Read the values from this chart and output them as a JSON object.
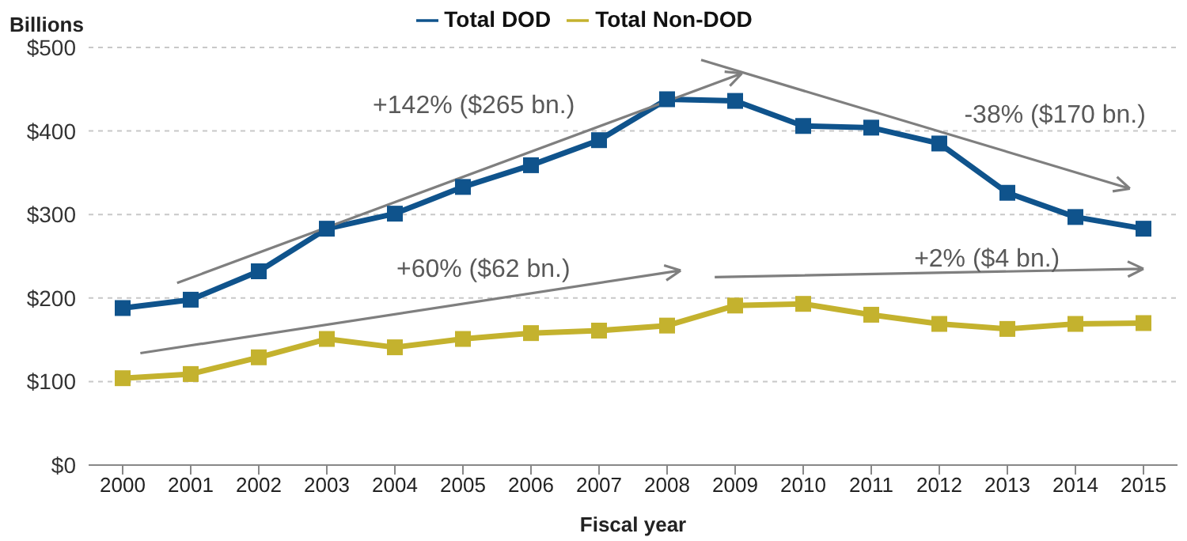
{
  "chart_data": {
    "type": "line",
    "ylabel": "Billions",
    "xlabel": "Fiscal year",
    "categories": [
      "2000",
      "2001",
      "2002",
      "2003",
      "2004",
      "2005",
      "2006",
      "2007",
      "2008",
      "2009",
      "2010",
      "2011",
      "2012",
      "2013",
      "2014",
      "2015"
    ],
    "series": [
      {
        "name": "Total DOD",
        "color": "#0f538c",
        "values": [
          188,
          198,
          232,
          283,
          301,
          333,
          359,
          389,
          438,
          436,
          406,
          404,
          385,
          326,
          297,
          283
        ]
      },
      {
        "name": "Total Non-DOD",
        "color": "#c4b22e",
        "values": [
          104,
          109,
          129,
          151,
          141,
          151,
          158,
          161,
          167,
          191,
          193,
          180,
          169,
          163,
          169,
          170
        ]
      }
    ],
    "ylim": [
      0,
      500
    ],
    "yticks": [
      {
        "value": 0,
        "label": "$0"
      },
      {
        "value": 100,
        "label": "$100"
      },
      {
        "value": 200,
        "label": "$200"
      },
      {
        "value": 300,
        "label": "$300"
      },
      {
        "value": 400,
        "label": "$400"
      },
      {
        "value": 500,
        "label": "$500"
      }
    ],
    "annotations": [
      "+142% ($265 bn.)",
      "-38% ($170 bn.)",
      "+60% ($62 bn.)",
      "+2% ($4 bn.)"
    ],
    "grid": "y",
    "legend": "top",
    "marker": "square",
    "line_style": "solid"
  }
}
